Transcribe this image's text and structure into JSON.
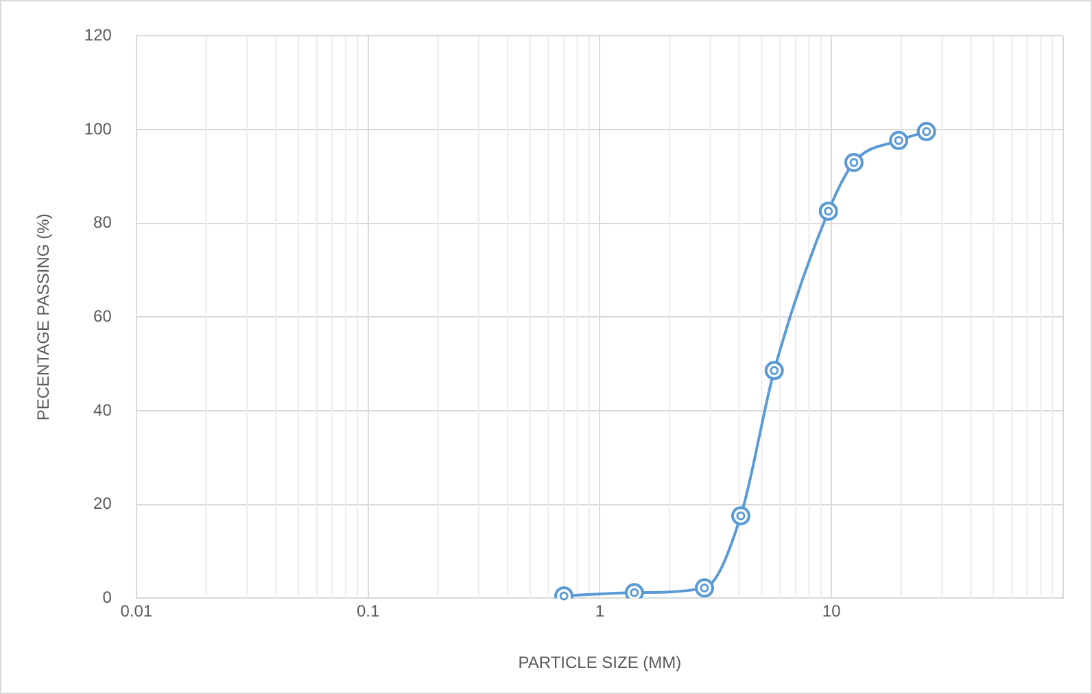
{
  "chart_data": {
    "type": "line",
    "xlabel": "PARTICLE SIZE (MM)",
    "ylabel": "PECENTAGE PASSING (%)",
    "x": [
      0.7,
      1.41,
      2.83,
      4.06,
      5.66,
      9.7,
      12.5,
      19.5,
      25.7
    ],
    "series": [
      {
        "color": "#5b9bd5",
        "values": [
          0.5,
          1.2,
          2.2,
          17.6,
          48.6,
          82.6,
          93,
          97.7,
          99.6
        ]
      }
    ],
    "log": "x",
    "xlim": [
      0.01,
      100
    ],
    "xticks": [
      0.01,
      0.1,
      1,
      10,
      {
        "value": 100,
        "label": null
      }
    ],
    "ylim": [
      0,
      120
    ],
    "yticks": [
      0,
      20,
      40,
      60,
      80,
      100,
      120
    ],
    "grid": true,
    "legend": false,
    "marker": "circle",
    "line_style": "solid"
  }
}
